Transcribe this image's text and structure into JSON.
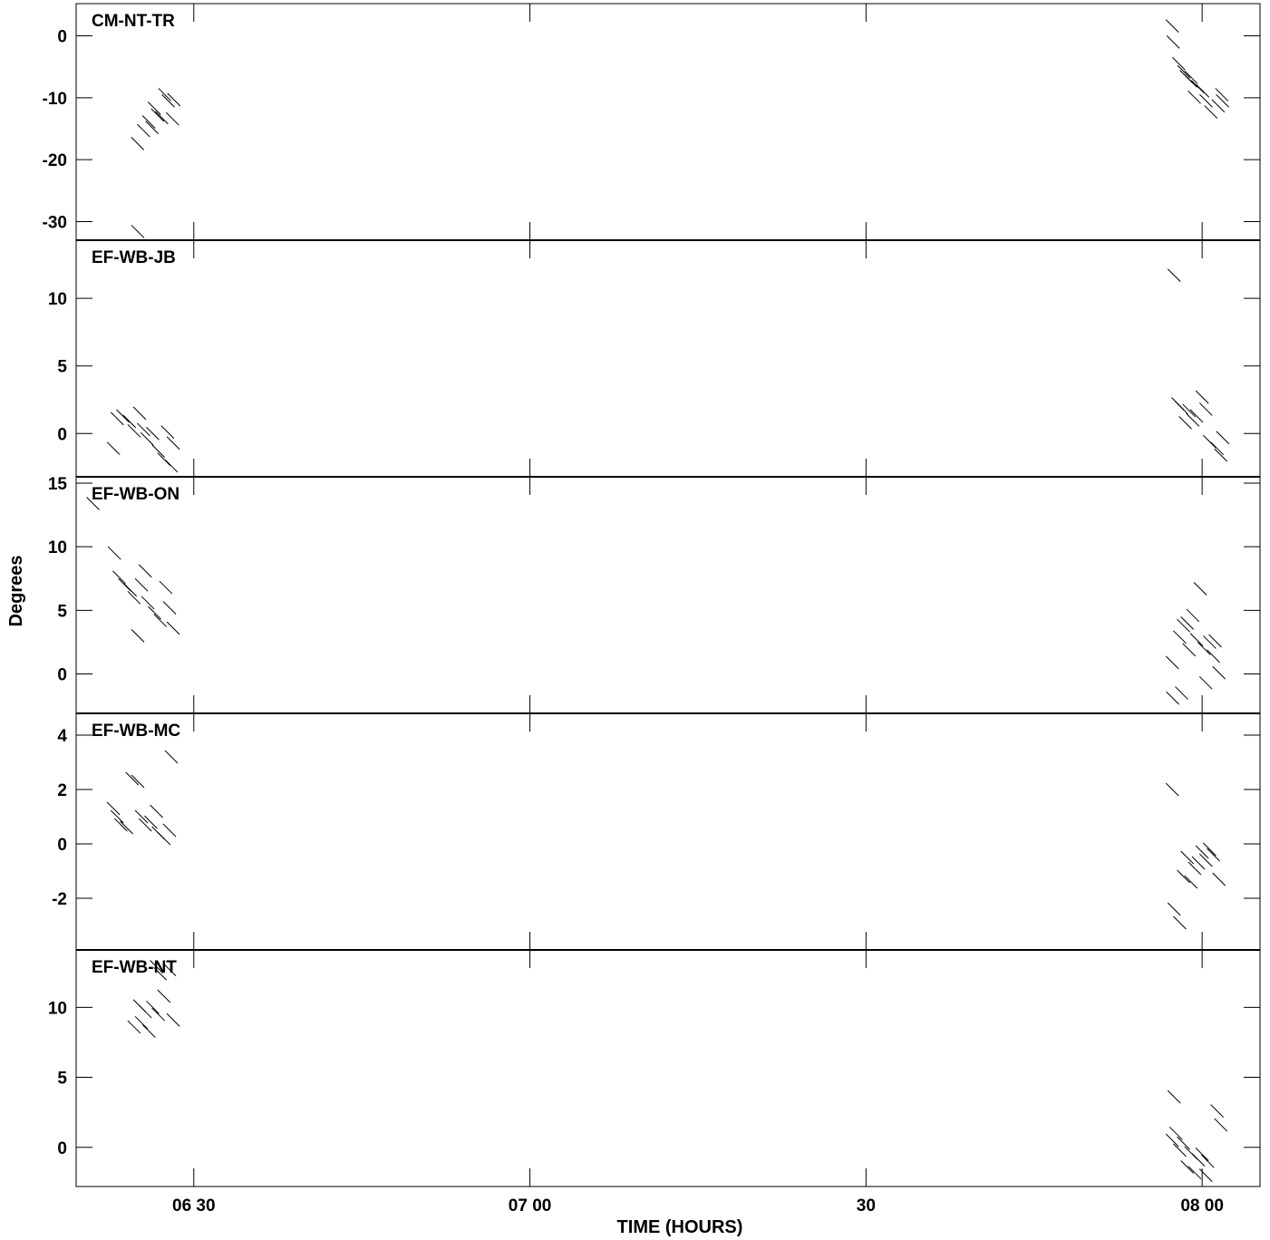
{
  "chart_data": {
    "type": "scatter",
    "xlabel": "TIME (HOURS)",
    "ylabel": "Degrees",
    "x_ticks": [
      {
        "value": "06:30",
        "label": "06 30"
      },
      {
        "value": "07:00",
        "label": "07 00"
      },
      {
        "value": "07:30",
        "label": "30"
      },
      {
        "value": "08:00",
        "label": "08 00"
      }
    ],
    "xlim": [
      "06:19:30",
      "08:05:10"
    ],
    "grid": false,
    "panels": [
      {
        "title": "CM-NT-TR",
        "ylim": [
          -33,
          5.2
        ],
        "yticks": [
          0,
          -10,
          -20,
          -30
        ],
        "points": [
          {
            "x": "06:24:59",
            "y": -17.4
          },
          {
            "x": "06:25:31",
            "y": -15.3
          },
          {
            "x": "06:25:59",
            "y": -13.9
          },
          {
            "x": "06:26:16",
            "y": -14.8
          },
          {
            "x": "06:26:29",
            "y": -11.7
          },
          {
            "x": "06:26:46",
            "y": -12.8
          },
          {
            "x": "06:27:08",
            "y": -13.2
          },
          {
            "x": "06:27:25",
            "y": -9.5
          },
          {
            "x": "06:27:43",
            "y": -10.5
          },
          {
            "x": "06:28:06",
            "y": -13.4
          },
          {
            "x": "06:28:13",
            "y": -10.3
          },
          {
            "x": "06:25:00",
            "y": -31.6
          },
          {
            "x": "07:57:20",
            "y": 1.6
          },
          {
            "x": "07:57:25",
            "y": -1.0
          },
          {
            "x": "07:57:55",
            "y": -4.5
          },
          {
            "x": "07:58:22",
            "y": -5.8
          },
          {
            "x": "07:58:35",
            "y": -6.6
          },
          {
            "x": "07:58:59",
            "y": -7.3
          },
          {
            "x": "07:59:18",
            "y": -9.9
          },
          {
            "x": "07:59:36",
            "y": -8.2
          },
          {
            "x": "08:00:03",
            "y": -8.9
          },
          {
            "x": "08:00:21",
            "y": -10.5
          },
          {
            "x": "08:00:47",
            "y": -12.3
          },
          {
            "x": "08:01:26",
            "y": -11.3
          },
          {
            "x": "08:01:45",
            "y": -9.5
          },
          {
            "x": "08:01:49",
            "y": -10.5
          },
          {
            "x": "07:59:01",
            "y": -6.7
          }
        ]
      },
      {
        "title": "EF-WB-JB",
        "ylim": [
          -3.2,
          14.3
        ],
        "yticks": [
          10,
          5,
          0
        ],
        "points": [
          {
            "x": "06:22:50",
            "y": -1.1
          },
          {
            "x": "06:23:10",
            "y": 1.1
          },
          {
            "x": "06:23:40",
            "y": 1.3
          },
          {
            "x": "06:24:15",
            "y": 0.9
          },
          {
            "x": "06:24:40",
            "y": 0.2
          },
          {
            "x": "06:25:10",
            "y": 1.5
          },
          {
            "x": "06:25:31",
            "y": 0.3
          },
          {
            "x": "06:25:50",
            "y": -0.4
          },
          {
            "x": "06:26:20",
            "y": 0.0
          },
          {
            "x": "06:26:50",
            "y": -1.3
          },
          {
            "x": "06:27:20",
            "y": -1.9
          },
          {
            "x": "06:27:40",
            "y": 0.1
          },
          {
            "x": "06:28:10",
            "y": -0.7
          },
          {
            "x": "06:28:00",
            "y": -2.4
          },
          {
            "x": "07:57:30",
            "y": 11.7
          },
          {
            "x": "07:57:50",
            "y": 2.2
          },
          {
            "x": "07:58:10",
            "y": 1.9
          },
          {
            "x": "07:58:30",
            "y": 0.8
          },
          {
            "x": "07:58:50",
            "y": 1.7
          },
          {
            "x": "07:59:10",
            "y": 1.0
          },
          {
            "x": "07:59:30",
            "y": 1.3
          },
          {
            "x": "08:00:00",
            "y": 2.7
          },
          {
            "x": "08:00:20",
            "y": 1.8
          },
          {
            "x": "08:00:40",
            "y": -0.6
          },
          {
            "x": "08:01:20",
            "y": -1.1
          },
          {
            "x": "08:01:40",
            "y": -1.6
          },
          {
            "x": "08:01:50",
            "y": -0.3
          }
        ]
      },
      {
        "title": "EF-WB-ON",
        "ylim": [
          -3.1,
          15.5
        ],
        "yticks": [
          15,
          10,
          5,
          0
        ],
        "points": [
          {
            "x": "06:21:00",
            "y": 13.4
          },
          {
            "x": "06:22:55",
            "y": 9.5
          },
          {
            "x": "06:23:20",
            "y": 7.6
          },
          {
            "x": "06:23:50",
            "y": 7.0
          },
          {
            "x": "06:24:20",
            "y": 6.6
          },
          {
            "x": "06:24:40",
            "y": 6.0
          },
          {
            "x": "06:25:00",
            "y": 3.0
          },
          {
            "x": "06:25:20",
            "y": 7.0
          },
          {
            "x": "06:25:40",
            "y": 8.1
          },
          {
            "x": "06:25:54",
            "y": 5.6
          },
          {
            "x": "06:26:30",
            "y": 4.8
          },
          {
            "x": "06:27:00",
            "y": 4.2
          },
          {
            "x": "06:27:30",
            "y": 6.8
          },
          {
            "x": "06:27:50",
            "y": 5.2
          },
          {
            "x": "06:28:10",
            "y": 3.6
          },
          {
            "x": "07:57:20",
            "y": 0.9
          },
          {
            "x": "07:57:22",
            "y": -1.9
          },
          {
            "x": "07:58:00",
            "y": 2.9
          },
          {
            "x": "07:58:10",
            "y": -1.5
          },
          {
            "x": "07:58:20",
            "y": 3.8
          },
          {
            "x": "07:58:40",
            "y": 4.0
          },
          {
            "x": "07:58:50",
            "y": 1.9
          },
          {
            "x": "07:59:10",
            "y": 4.6
          },
          {
            "x": "07:59:30",
            "y": 2.7
          },
          {
            "x": "07:59:50",
            "y": 6.7
          },
          {
            "x": "08:00:10",
            "y": 2.0
          },
          {
            "x": "08:00:20",
            "y": -0.7
          },
          {
            "x": "08:00:40",
            "y": 2.5
          },
          {
            "x": "08:01:00",
            "y": 1.4
          },
          {
            "x": "08:01:30",
            "y": 0.1
          },
          {
            "x": "08:01:10",
            "y": 2.6
          }
        ]
      },
      {
        "title": "EF-WB-MC",
        "ylim": [
          -3.9,
          4.8
        ],
        "yticks": [
          4,
          2,
          0,
          -2
        ],
        "points": [
          {
            "x": "06:22:50",
            "y": 1.3
          },
          {
            "x": "06:23:10",
            "y": 1.0
          },
          {
            "x": "06:23:30",
            "y": 0.7
          },
          {
            "x": "06:24:00",
            "y": 0.6
          },
          {
            "x": "06:24:30",
            "y": 2.4
          },
          {
            "x": "06:25:00",
            "y": 2.3
          },
          {
            "x": "06:25:20",
            "y": 1.0
          },
          {
            "x": "06:25:40",
            "y": 0.7
          },
          {
            "x": "06:26:10",
            "y": 0.8
          },
          {
            "x": "06:26:40",
            "y": 1.2
          },
          {
            "x": "06:26:50",
            "y": 0.4
          },
          {
            "x": "06:27:20",
            "y": 0.2
          },
          {
            "x": "06:27:50",
            "y": 0.5
          },
          {
            "x": "06:28:00",
            "y": 3.2
          },
          {
            "x": "07:57:20",
            "y": 2.0
          },
          {
            "x": "07:57:30",
            "y": -2.4
          },
          {
            "x": "07:58:00",
            "y": -2.9
          },
          {
            "x": "07:58:20",
            "y": -1.2
          },
          {
            "x": "07:58:40",
            "y": -0.5
          },
          {
            "x": "07:59:00",
            "y": -1.4
          },
          {
            "x": "07:59:20",
            "y": -0.9
          },
          {
            "x": "07:59:40",
            "y": -0.7
          },
          {
            "x": "08:00:00",
            "y": -0.3
          },
          {
            "x": "08:00:20",
            "y": -0.6
          },
          {
            "x": "08:00:40",
            "y": -0.2
          },
          {
            "x": "08:01:00",
            "y": -0.4
          },
          {
            "x": "08:01:30",
            "y": -1.3
          }
        ]
      },
      {
        "title": "EF-WB-NT",
        "ylim": [
          -2.8,
          14.1
        ],
        "yticks": [
          10,
          5,
          0
        ],
        "points": [
          {
            "x": "06:24:40",
            "y": 8.6
          },
          {
            "x": "06:25:10",
            "y": 10.1
          },
          {
            "x": "06:25:20",
            "y": 8.9
          },
          {
            "x": "06:25:40",
            "y": 9.7
          },
          {
            "x": "06:26:00",
            "y": 8.3
          },
          {
            "x": "06:26:20",
            "y": 10.0
          },
          {
            "x": "06:26:50",
            "y": 9.5
          },
          {
            "x": "06:27:00",
            "y": 12.4
          },
          {
            "x": "06:27:20",
            "y": 10.8
          },
          {
            "x": "06:27:50",
            "y": 12.7
          },
          {
            "x": "06:28:10",
            "y": 9.1
          },
          {
            "x": "06:26:40",
            "y": 12.9
          },
          {
            "x": "07:57:30",
            "y": 3.6
          },
          {
            "x": "07:57:20",
            "y": 0.5
          },
          {
            "x": "07:57:40",
            "y": 1.0
          },
          {
            "x": "07:58:00",
            "y": -0.2
          },
          {
            "x": "07:58:20",
            "y": 0.3
          },
          {
            "x": "07:58:40",
            "y": -1.4
          },
          {
            "x": "07:59:00",
            "y": -0.4
          },
          {
            "x": "07:59:20",
            "y": -1.8
          },
          {
            "x": "07:59:40",
            "y": -0.9
          },
          {
            "x": "08:00:00",
            "y": -0.5
          },
          {
            "x": "08:00:20",
            "y": -2.0
          },
          {
            "x": "08:00:30",
            "y": -1.0
          },
          {
            "x": "08:01:20",
            "y": 2.6
          },
          {
            "x": "08:01:40",
            "y": 1.6
          }
        ]
      }
    ]
  }
}
